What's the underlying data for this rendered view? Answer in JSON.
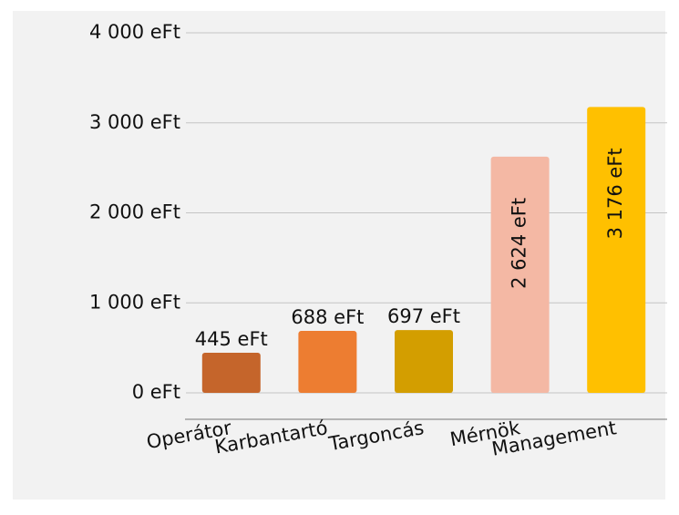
{
  "chart_data": {
    "type": "bar",
    "categories": [
      "Operátor",
      "Karbantartó",
      "Targoncás",
      "Mérnök",
      "Management"
    ],
    "values": [
      445,
      688,
      697,
      2624,
      3176
    ],
    "value_labels": [
      "445 eFt",
      "688 eFt",
      "697 eFt",
      "2 624 eFt",
      "3 176 eFt"
    ],
    "colors": [
      "#c5652b",
      "#ed7d31",
      "#d39e00",
      "#f4b8a4",
      "#ffc000"
    ],
    "ylim": [
      0,
      4000
    ],
    "yticks": [
      {
        "value": 0,
        "label": "0 eFt"
      },
      {
        "value": 1000,
        "label": "1 000 eFt"
      },
      {
        "value": 2000,
        "label": "2 000 eFt"
      },
      {
        "value": 3000,
        "label": "3 000 eFt"
      },
      {
        "value": 4000,
        "label": "4 000 eFt"
      }
    ],
    "grid": true
  }
}
